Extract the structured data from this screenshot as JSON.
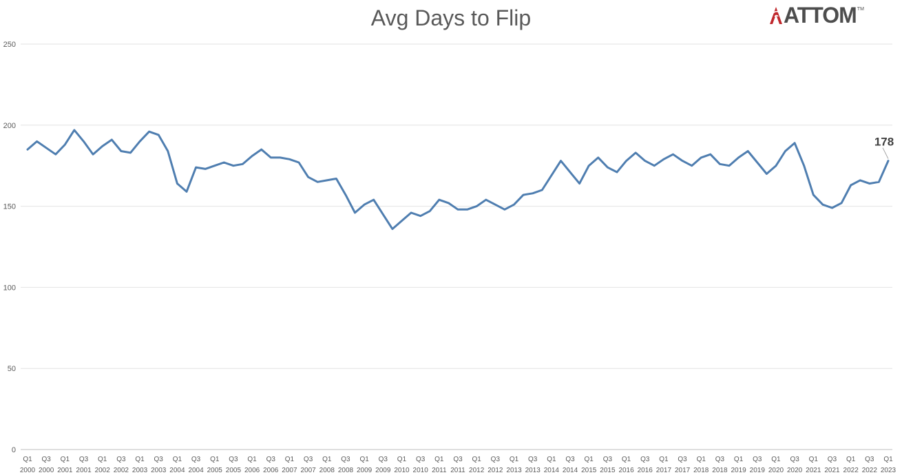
{
  "logo": {
    "text": "ATTOM",
    "tm": "TM",
    "brand_red": "#c0282d"
  },
  "chart_data": {
    "type": "line",
    "title": "Avg Days to Flip",
    "xlabel": "",
    "ylabel": "",
    "ylim": [
      0,
      250
    ],
    "yticks": [
      0,
      50,
      100,
      150,
      200,
      250
    ],
    "grid": true,
    "legend": "none",
    "line_color": "#4f7eb0",
    "x": [
      "Q1 2000",
      "Q2 2000",
      "Q3 2000",
      "Q4 2000",
      "Q1 2001",
      "Q2 2001",
      "Q3 2001",
      "Q4 2001",
      "Q1 2002",
      "Q2 2002",
      "Q3 2002",
      "Q4 2002",
      "Q1 2003",
      "Q2 2003",
      "Q3 2003",
      "Q4 2003",
      "Q1 2004",
      "Q2 2004",
      "Q3 2004",
      "Q4 2004",
      "Q1 2005",
      "Q2 2005",
      "Q3 2005",
      "Q4 2005",
      "Q1 2006",
      "Q2 2006",
      "Q3 2006",
      "Q4 2006",
      "Q1 2007",
      "Q2 2007",
      "Q3 2007",
      "Q4 2007",
      "Q1 2008",
      "Q2 2008",
      "Q3 2008",
      "Q4 2008",
      "Q1 2009",
      "Q2 2009",
      "Q3 2009",
      "Q4 2009",
      "Q1 2010",
      "Q2 2010",
      "Q3 2010",
      "Q4 2010",
      "Q1 2011",
      "Q2 2011",
      "Q3 2011",
      "Q4 2011",
      "Q1 2012",
      "Q2 2012",
      "Q3 2012",
      "Q4 2012",
      "Q1 2013",
      "Q2 2013",
      "Q3 2013",
      "Q4 2013",
      "Q1 2014",
      "Q2 2014",
      "Q3 2014",
      "Q4 2014",
      "Q1 2015",
      "Q2 2015",
      "Q3 2015",
      "Q4 2015",
      "Q1 2016",
      "Q2 2016",
      "Q3 2016",
      "Q4 2016",
      "Q1 2017",
      "Q2 2017",
      "Q3 2017",
      "Q4 2017",
      "Q1 2018",
      "Q2 2018",
      "Q3 2018",
      "Q4 2018",
      "Q1 2019",
      "Q2 2019",
      "Q3 2019",
      "Q4 2019",
      "Q1 2020",
      "Q2 2020",
      "Q3 2020",
      "Q4 2020",
      "Q1 2021",
      "Q2 2021",
      "Q3 2021",
      "Q4 2021",
      "Q1 2022",
      "Q2 2022",
      "Q3 2022",
      "Q4 2022",
      "Q1 2023"
    ],
    "tick_labels": [
      {
        "q": "Q1",
        "y": "2000"
      },
      {
        "q": "Q3",
        "y": "2000"
      },
      {
        "q": "Q1",
        "y": "2001"
      },
      {
        "q": "Q3",
        "y": "2001"
      },
      {
        "q": "Q1",
        "y": "2002"
      },
      {
        "q": "Q3",
        "y": "2002"
      },
      {
        "q": "Q1",
        "y": "2003"
      },
      {
        "q": "Q3",
        "y": "2003"
      },
      {
        "q": "Q1",
        "y": "2004"
      },
      {
        "q": "Q3",
        "y": "2004"
      },
      {
        "q": "Q1",
        "y": "2005"
      },
      {
        "q": "Q3",
        "y": "2005"
      },
      {
        "q": "Q1",
        "y": "2006"
      },
      {
        "q": "Q3",
        "y": "2006"
      },
      {
        "q": "Q1",
        "y": "2007"
      },
      {
        "q": "Q3",
        "y": "2007"
      },
      {
        "q": "Q1",
        "y": "2008"
      },
      {
        "q": "Q3",
        "y": "2008"
      },
      {
        "q": "Q1",
        "y": "2009"
      },
      {
        "q": "Q3",
        "y": "2009"
      },
      {
        "q": "Q1",
        "y": "2010"
      },
      {
        "q": "Q3",
        "y": "2010"
      },
      {
        "q": "Q1",
        "y": "2011"
      },
      {
        "q": "Q3",
        "y": "2011"
      },
      {
        "q": "Q1",
        "y": "2012"
      },
      {
        "q": "Q3",
        "y": "2012"
      },
      {
        "q": "Q1",
        "y": "2013"
      },
      {
        "q": "Q3",
        "y": "2013"
      },
      {
        "q": "Q1",
        "y": "2014"
      },
      {
        "q": "Q3",
        "y": "2014"
      },
      {
        "q": "Q1",
        "y": "2015"
      },
      {
        "q": "Q3",
        "y": "2015"
      },
      {
        "q": "Q1",
        "y": "2016"
      },
      {
        "q": "Q3",
        "y": "2016"
      },
      {
        "q": "Q1",
        "y": "2017"
      },
      {
        "q": "Q3",
        "y": "2017"
      },
      {
        "q": "Q1",
        "y": "2018"
      },
      {
        "q": "Q3",
        "y": "2018"
      },
      {
        "q": "Q1",
        "y": "2019"
      },
      {
        "q": "Q3",
        "y": "2019"
      },
      {
        "q": "Q1",
        "y": "2020"
      },
      {
        "q": "Q3",
        "y": "2020"
      },
      {
        "q": "Q1",
        "y": "2021"
      },
      {
        "q": "Q3",
        "y": "2021"
      },
      {
        "q": "Q1",
        "y": "2022"
      },
      {
        "q": "Q3",
        "y": "2022"
      },
      {
        "q": "Q1",
        "y": "2023"
      }
    ],
    "series": [
      {
        "values": [
          185,
          190,
          186,
          182,
          188,
          197,
          190,
          182,
          187,
          191,
          184,
          183,
          190,
          196,
          194,
          184,
          164,
          159,
          174,
          173,
          175,
          177,
          175,
          176,
          181,
          185,
          180,
          180,
          179,
          177,
          168,
          165,
          166,
          167,
          157,
          146,
          151,
          154,
          145,
          136,
          141,
          146,
          144,
          147,
          154,
          152,
          148,
          148,
          150,
          154,
          151,
          148,
          151,
          157,
          158,
          160,
          169,
          178,
          171,
          164,
          175,
          180,
          174,
          171,
          178,
          183,
          178,
          175,
          179,
          182,
          178,
          175,
          180,
          182,
          176,
          175,
          180,
          184,
          177,
          170,
          175,
          184,
          189,
          175,
          157,
          151,
          149,
          152,
          163,
          166,
          164,
          165,
          178
        ]
      }
    ],
    "annotations": [
      {
        "index": 92,
        "label": "178"
      }
    ]
  }
}
